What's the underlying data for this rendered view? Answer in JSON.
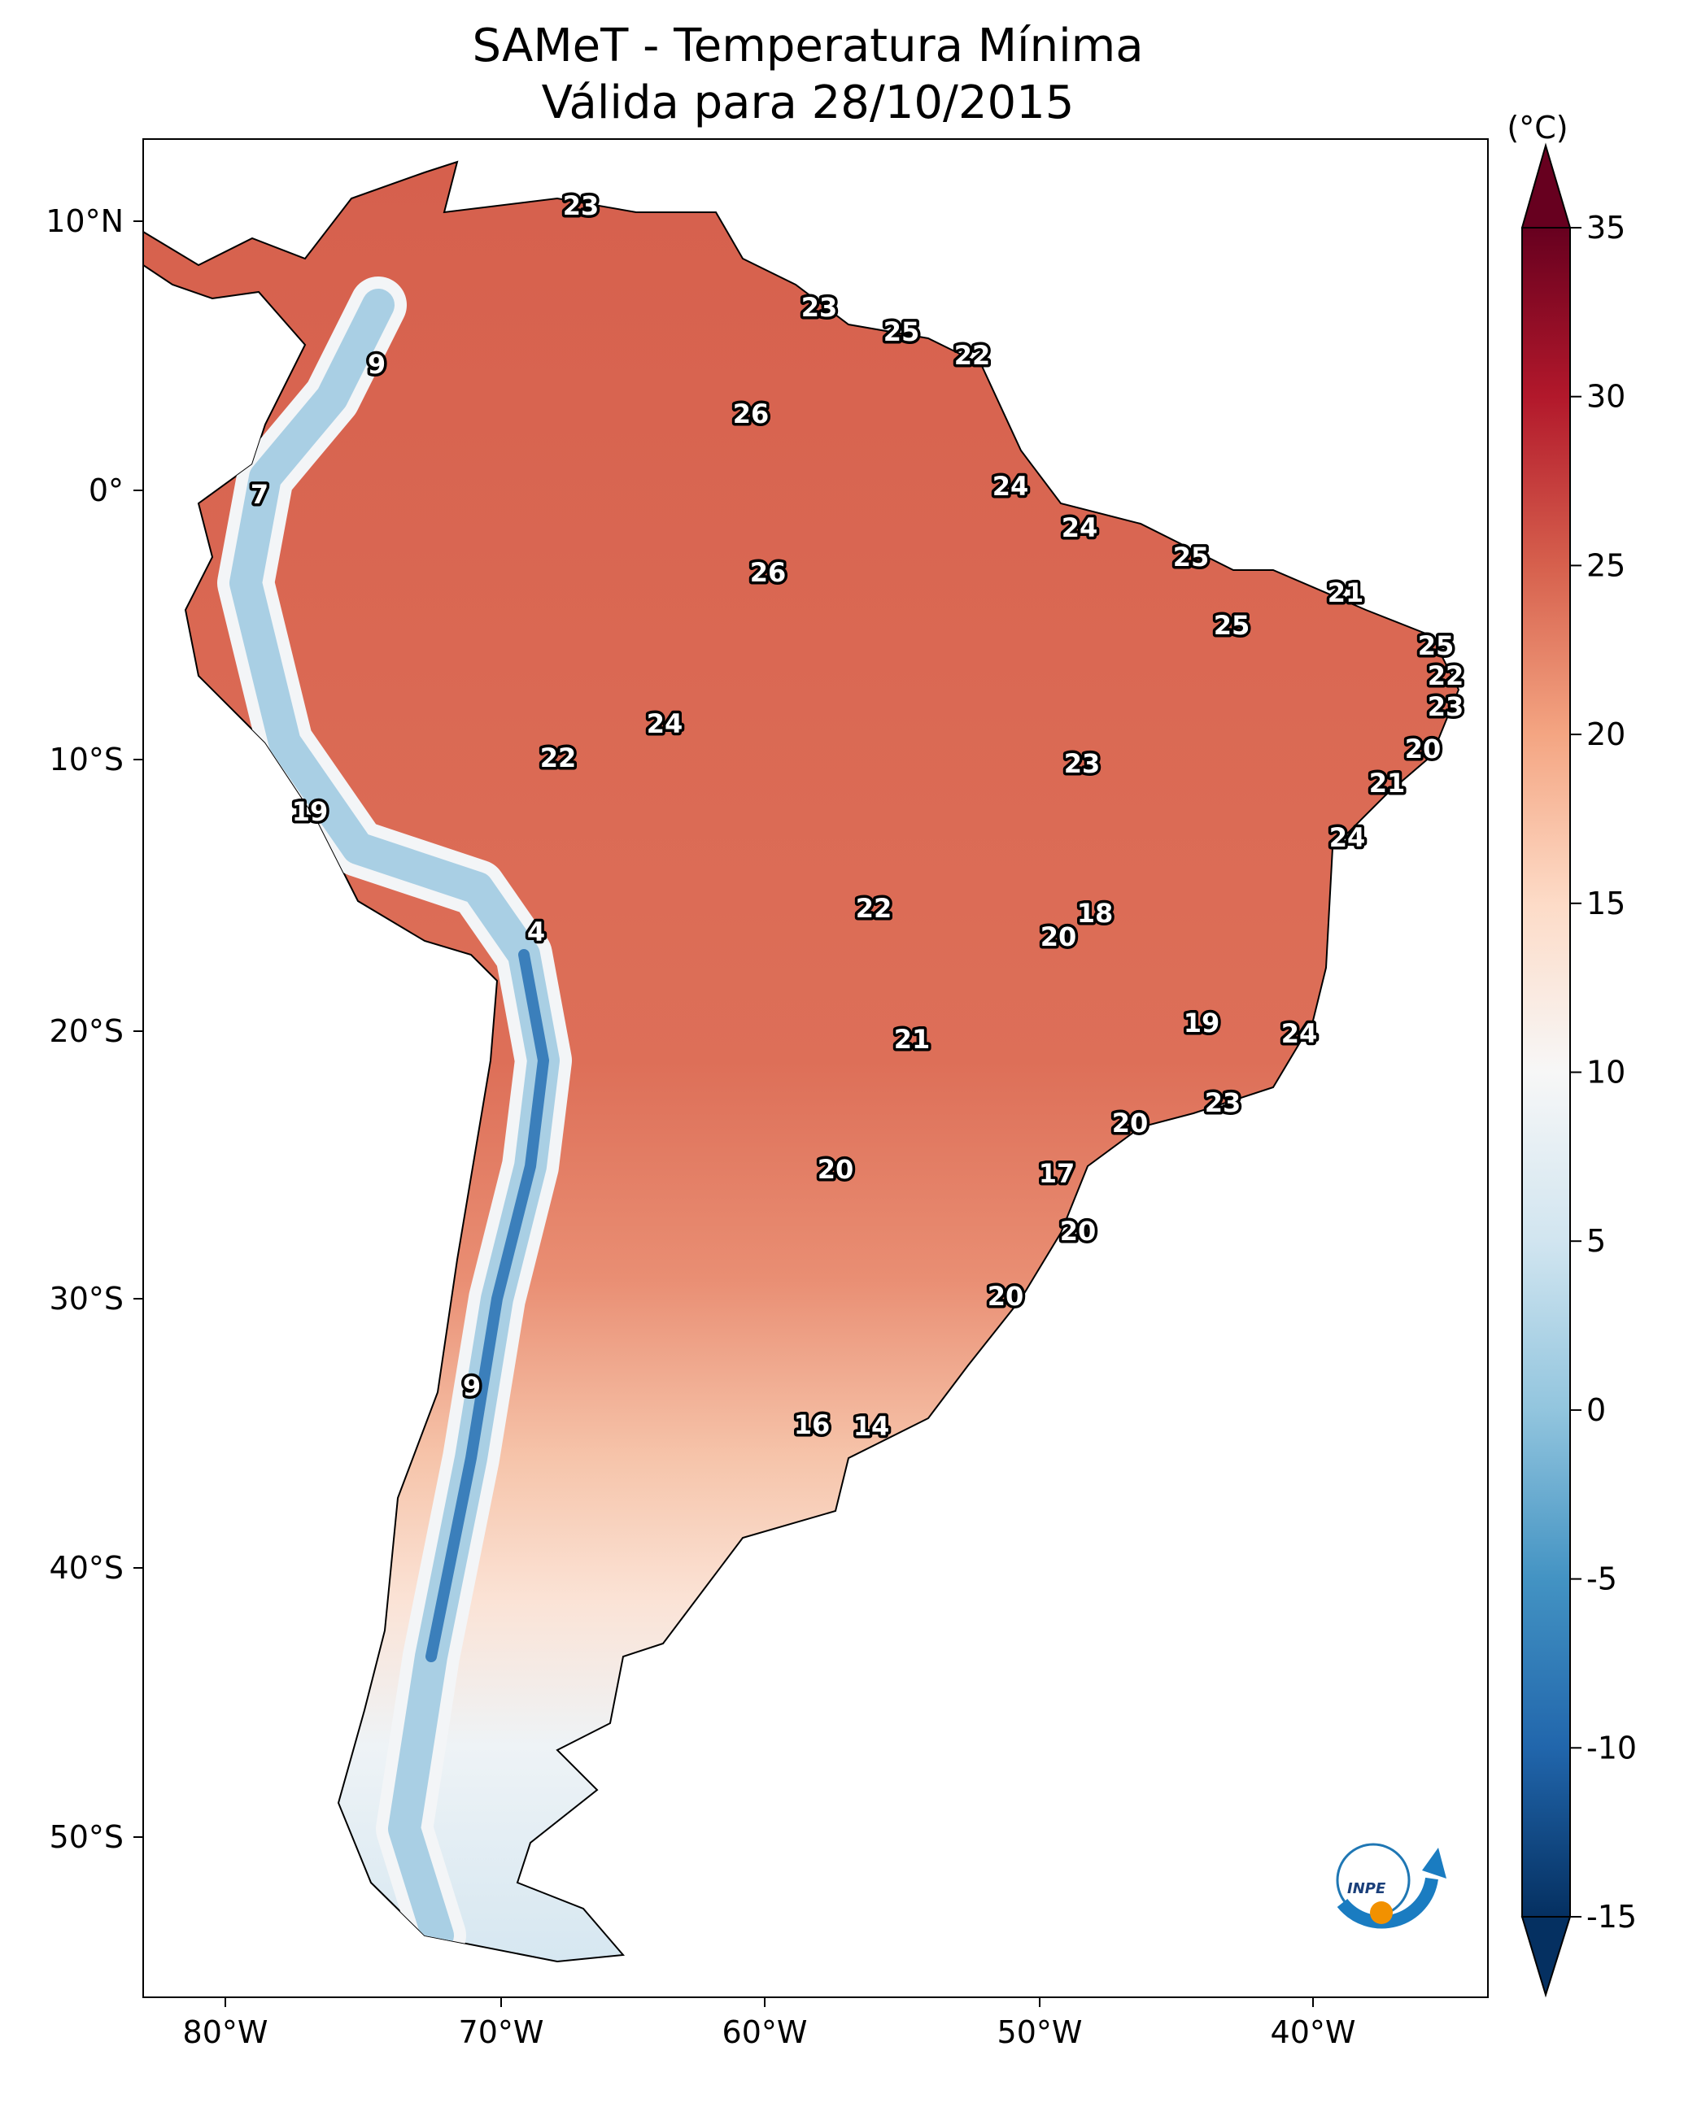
{
  "title": {
    "line1": "SAMeT - Temperatura Mínima",
    "line2": "Válida para 28/10/2015"
  },
  "colorbar": {
    "unit_label": "(°C)",
    "ticks": [
      "35",
      "30",
      "25",
      "20",
      "15",
      "10",
      "5",
      "0",
      "-5",
      "-10",
      "-15"
    ],
    "colormap": "RdBu_r",
    "range": [
      -15,
      35
    ],
    "extend": "both",
    "colors": {
      "-15": "#053061",
      "-10": "#2166ac",
      "-5": "#4393c3",
      "0": "#92c5de",
      "5": "#d1e5f0",
      "10": "#f7f7f7",
      "15": "#fddbc7",
      "20": "#f4a582",
      "25": "#d6604d",
      "30": "#b2182b",
      "35": "#67001f"
    }
  },
  "axes": {
    "lat_ticks": [
      "10°N",
      "0°",
      "10°S",
      "20°S",
      "30°S",
      "40°S",
      "50°S"
    ],
    "lon_ticks": [
      "80°W",
      "70°W",
      "60°W",
      "50°W",
      "40°W"
    ]
  },
  "station_values": [
    "23",
    "9",
    "23",
    "25",
    "22",
    "26",
    "7",
    "24",
    "24",
    "25",
    "26",
    "21",
    "25",
    "25",
    "22",
    "23",
    "24",
    "22",
    "20",
    "23",
    "21",
    "19",
    "24",
    "18",
    "22",
    "4",
    "20",
    "19",
    "24",
    "21",
    "23",
    "20",
    "20",
    "17",
    "20",
    "20",
    "9",
    "16",
    "14"
  ],
  "logo": {
    "text": "INPE"
  }
}
